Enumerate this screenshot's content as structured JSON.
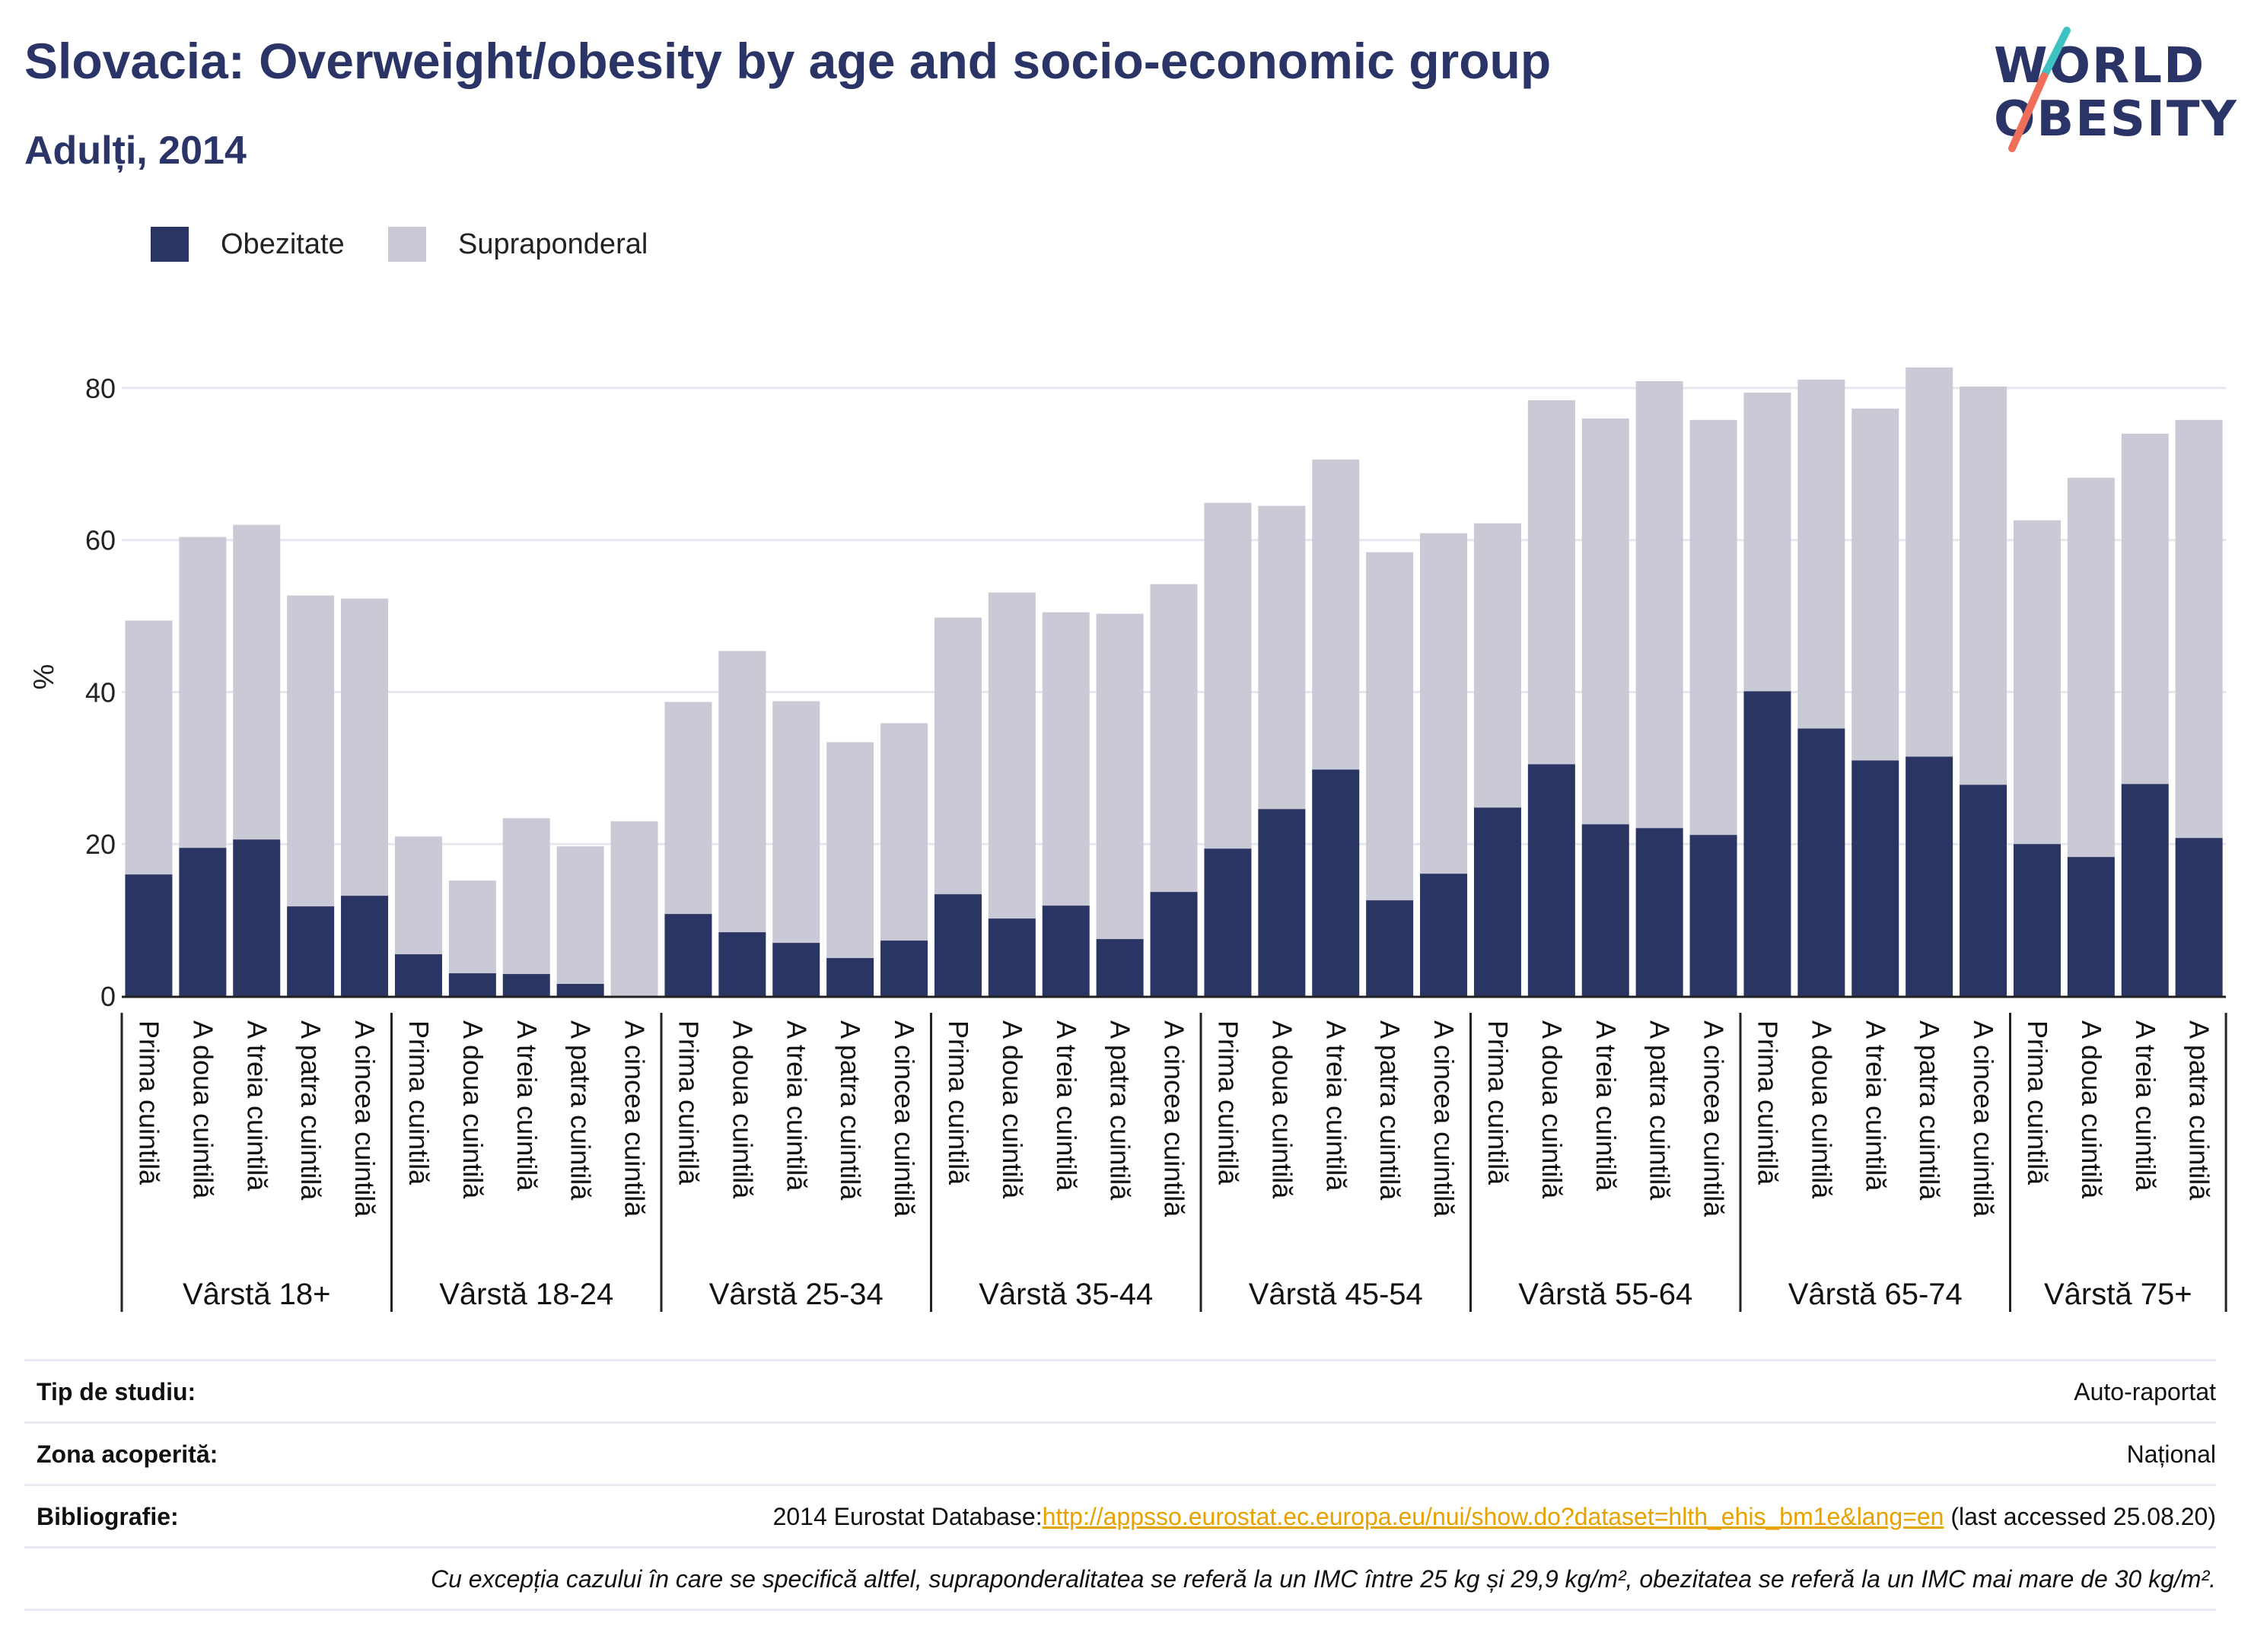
{
  "header": {
    "title": "Slovacia: Overweight/obesity by age and socio-economic group",
    "subtitle": "Adulți, 2014"
  },
  "logo": {
    "line1": "WORLD",
    "line2": "OBESITY"
  },
  "colors": {
    "obesity": "#2b3563",
    "overweight": "#c9cad5",
    "title": "#2b3467",
    "gridline": "#e5e7ee",
    "link": "#e8a200",
    "logo_teal": "#3ec1c1",
    "logo_coral": "#ef6f5a"
  },
  "legend": {
    "items": [
      {
        "label": "Obezitate"
      },
      {
        "label": "Supraponderal"
      }
    ]
  },
  "chart_data": {
    "type": "bar",
    "stacked": true,
    "ylabel": "%",
    "ylim": [
      0,
      86
    ],
    "yticks": [
      0,
      20,
      40,
      60,
      80
    ],
    "grid": true,
    "legend_position": "top-left",
    "groups": [
      {
        "label": "Vârstă 18+",
        "categories": [
          "Prima cuintilă",
          "A doua cuintilă",
          "A treia cuintilă",
          "A patra cuintilă",
          "A cincea cuintilă"
        ]
      },
      {
        "label": "Vârstă 18-24",
        "categories": [
          "Prima cuintilă",
          "A doua cuintilă",
          "A treia cuintilă",
          "A patra cuintilă",
          "A cincea cuintilă"
        ]
      },
      {
        "label": "Vârstă 25-34",
        "categories": [
          "Prima cuintilă",
          "A doua cuintilă",
          "A treia cuintilă",
          "A patra cuintilă",
          "A cincea cuintilă"
        ]
      },
      {
        "label": "Vârstă 35-44",
        "categories": [
          "Prima cuintilă",
          "A doua cuintilă",
          "A treia cuintilă",
          "A patra cuintilă",
          "A cincea cuintilă"
        ]
      },
      {
        "label": "Vârstă 45-54",
        "categories": [
          "Prima cuintilă",
          "A doua cuintilă",
          "A treia cuintilă",
          "A patra cuintilă",
          "A cincea cuintilă"
        ]
      },
      {
        "label": "Vârstă 55-64",
        "categories": [
          "Prima cuintilă",
          "A doua cuintilă",
          "A treia cuintilă",
          "A patra cuintilă",
          "A cincea cuintilă"
        ]
      },
      {
        "label": "Vârstă 65-74",
        "categories": [
          "Prima cuintilă",
          "A doua cuintilă",
          "A treia cuintilă",
          "A patra cuintilă",
          "A cincea cuintilă"
        ]
      },
      {
        "label": "Vârstă 75+",
        "categories": [
          "Prima cuintilă",
          "A doua cuintilă",
          "A treia cuintilă",
          "A patra cuintilă"
        ]
      }
    ],
    "series": [
      {
        "name": "Obezitate",
        "values": [
          16,
          19.5,
          20.6,
          11.8,
          13.2,
          5.5,
          3,
          2.9,
          1.6,
          0,
          10.8,
          8.4,
          7,
          5,
          7.3,
          13.4,
          10.2,
          11.9,
          7.5,
          13.7,
          19.4,
          24.6,
          29.8,
          12.6,
          16.1,
          24.8,
          30.5,
          22.6,
          22.1,
          21.2,
          40.1,
          35.2,
          31,
          31.5,
          27.8,
          20,
          18.3,
          27.9,
          20.8
        ]
      },
      {
        "name": "Supraponderal",
        "values": [
          33.4,
          40.9,
          41.4,
          40.9,
          39.1,
          15.5,
          12.2,
          20.5,
          18.1,
          23,
          27.9,
          37,
          31.8,
          28.4,
          28.6,
          36.4,
          42.9,
          38.6,
          42.8,
          40.5,
          45.5,
          39.9,
          40.8,
          45.8,
          44.8,
          37.4,
          47.9,
          53.4,
          58.8,
          54.6,
          39.3,
          45.9,
          46.3,
          51.2,
          52.4,
          42.6,
          49.9,
          46.1,
          55
        ]
      }
    ]
  },
  "info": {
    "study_type": {
      "key": "Tip de studiu:",
      "value": "Auto-raportat"
    },
    "coverage": {
      "key": "Zona acoperită:",
      "value": "Național"
    },
    "bibliography": {
      "key": "Bibliografie:",
      "prefix": "2014 Eurostat Database:",
      "link": "http://appsso.eurostat.ec.europa.eu/nui/show.do?dataset=hlth_ehis_bm1e&lang=en",
      "suffix": " (last accessed 25.08.20)"
    },
    "note": "Cu excepția cazului în care se specifică altfel, supraponderalitatea se referă la un IMC între 25 kg și 29,9 kg/m², obezitatea se referă la un IMC mai mare de 30 kg/m²."
  }
}
